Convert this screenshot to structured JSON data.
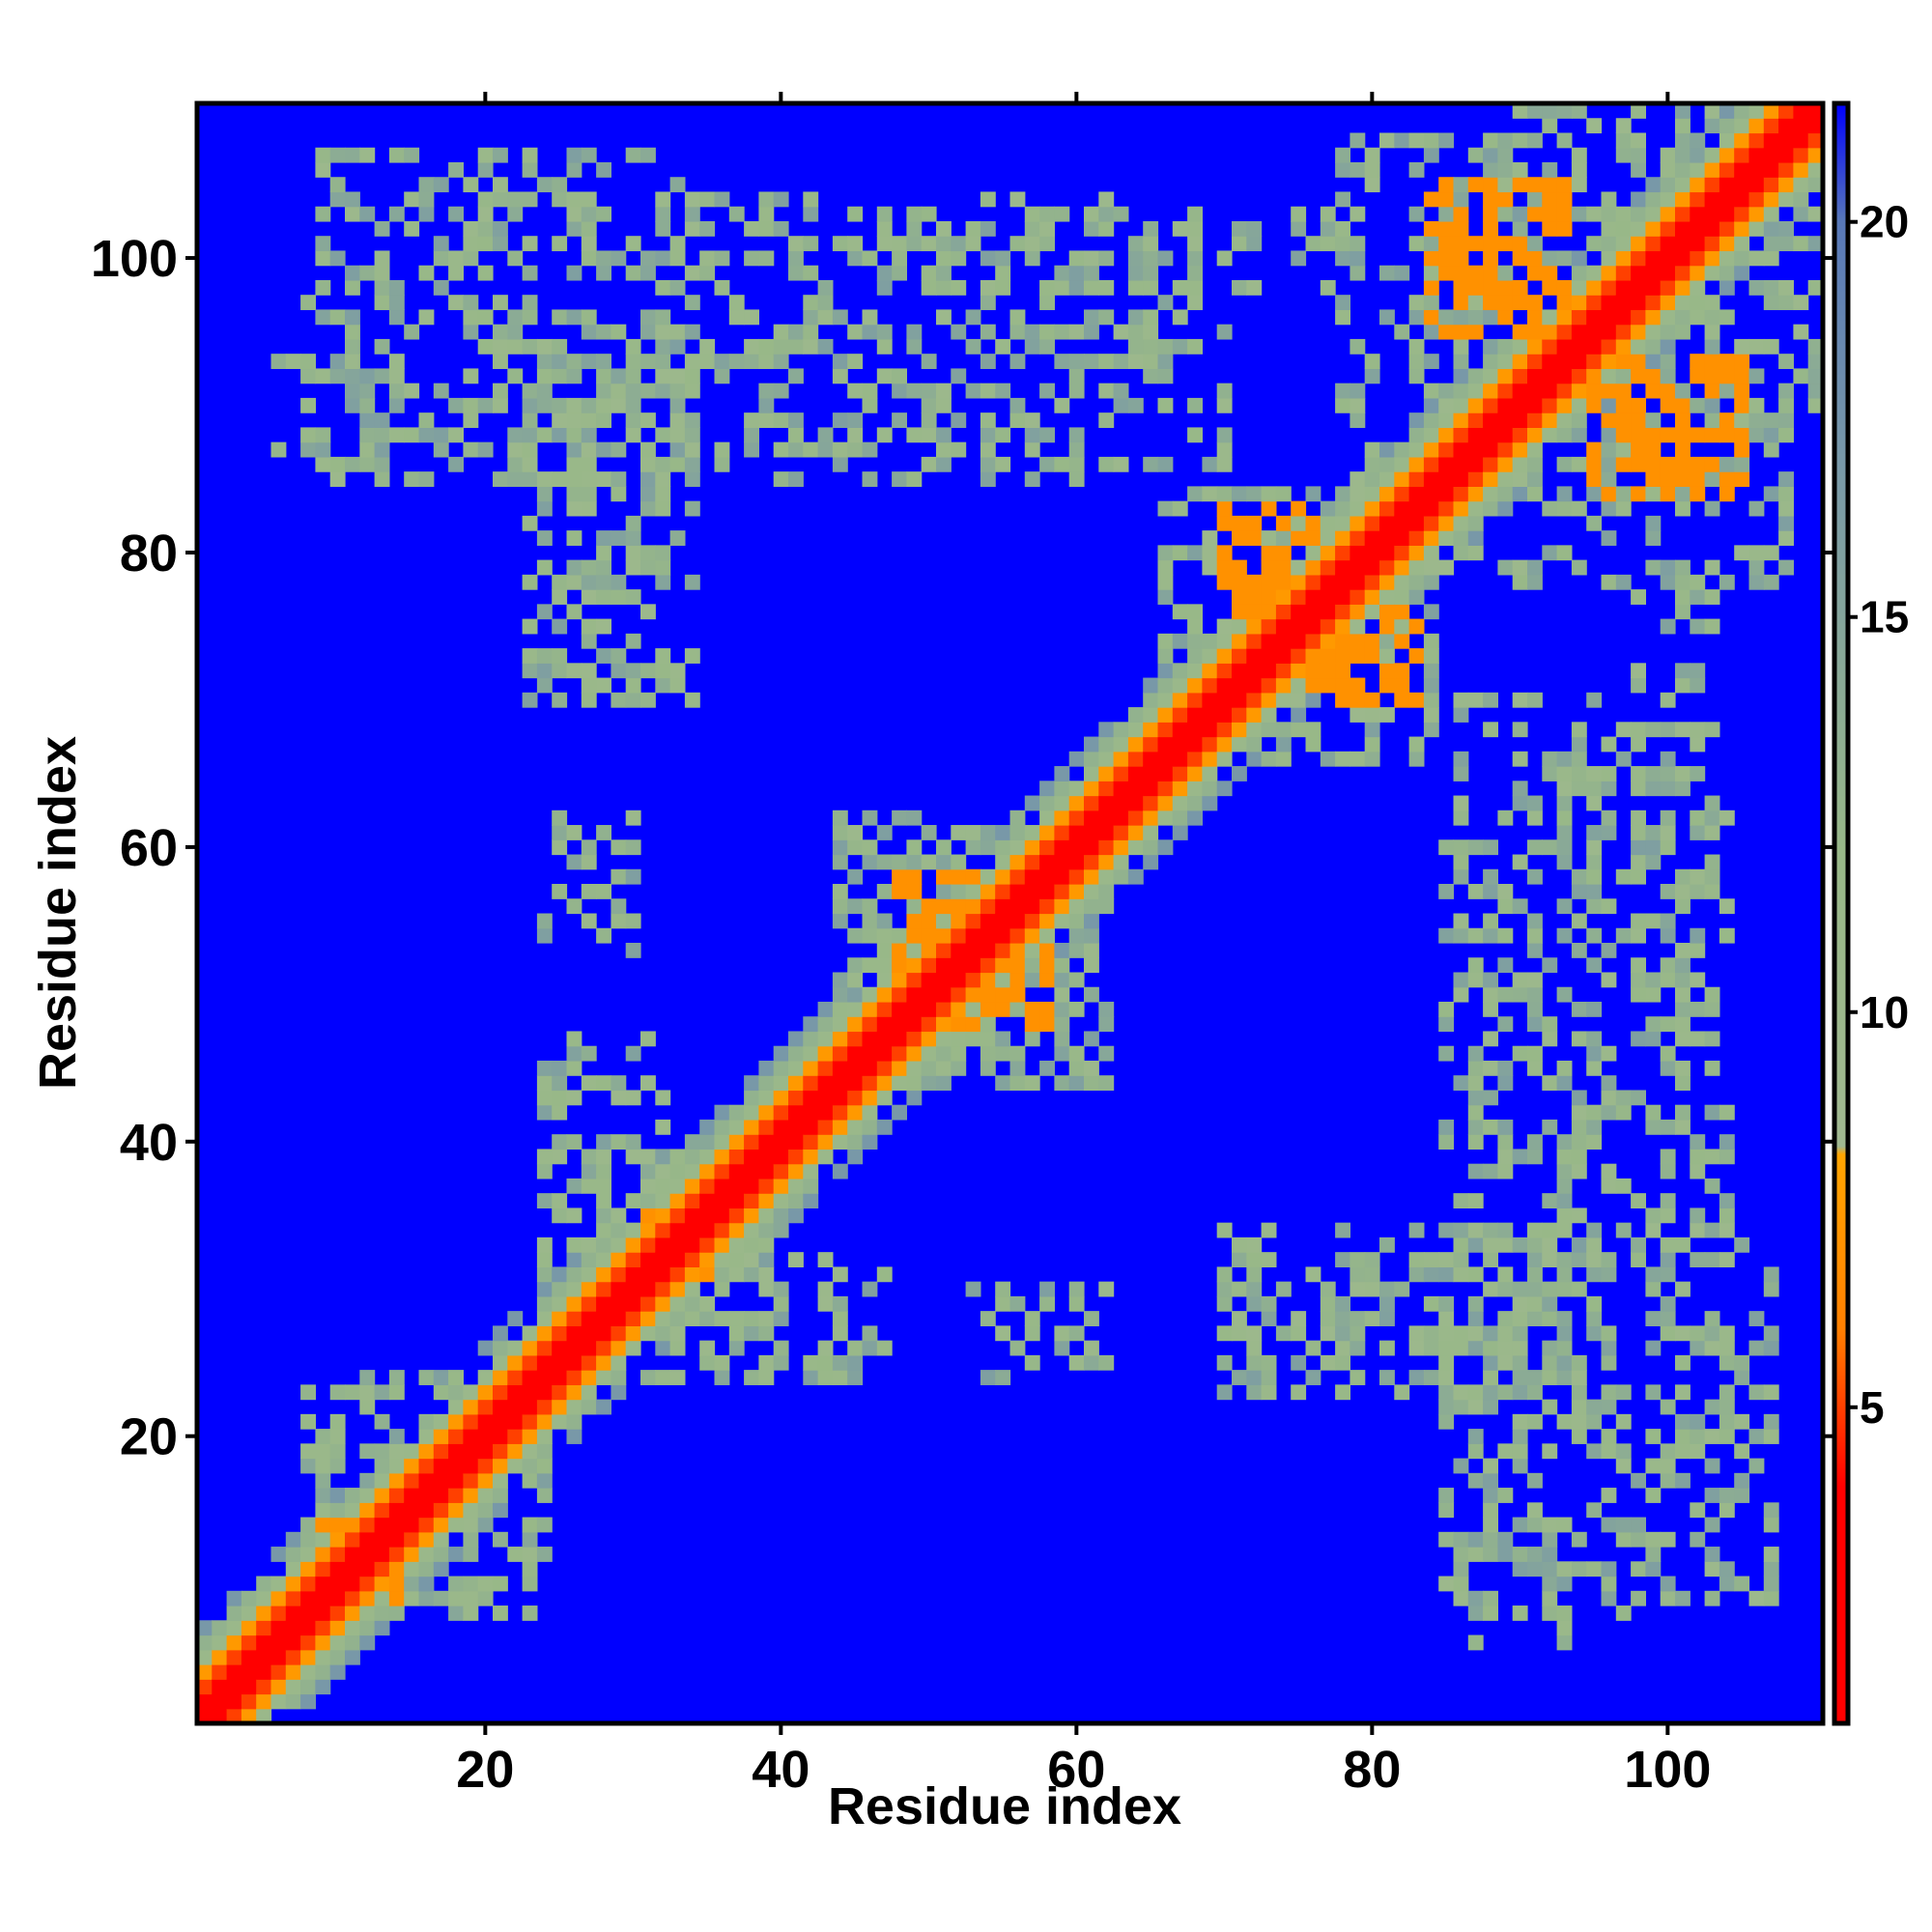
{
  "chart_data": {
    "type": "heatmap",
    "title": "",
    "xlabel": "Residue index",
    "ylabel": "Residue index",
    "xlim": [
      1,
      110
    ],
    "ylim": [
      1,
      110
    ],
    "x_ticks": [
      20,
      40,
      60,
      80,
      100
    ],
    "y_ticks": [
      20,
      40,
      60,
      80,
      100
    ],
    "x_tick_labels": [
      "20",
      "40",
      "60",
      "80",
      "100"
    ],
    "y_tick_labels": [
      "20",
      "40",
      "60",
      "80",
      "100"
    ],
    "grid": false,
    "colorbar": {
      "placement": "right",
      "range": [
        1,
        21.5
      ],
      "ticks": [
        5,
        10,
        15,
        20
      ],
      "tick_labels": [
        "5",
        "10",
        "15",
        "20"
      ],
      "colors": [
        {
          "value": 1,
          "color": "#ff0000"
        },
        {
          "value": 4,
          "color": "#ff0000"
        },
        {
          "value": 6,
          "color": "#ff8000"
        },
        {
          "value": 8.2,
          "color": "#ffa500"
        },
        {
          "value": 8.3,
          "color": "#a0b890"
        },
        {
          "value": 12,
          "color": "#98b888"
        },
        {
          "value": 17,
          "color": "#7898a8"
        },
        {
          "value": 20,
          "color": "#5878b8"
        },
        {
          "value": 21.5,
          "color": "#0000ff"
        }
      ]
    },
    "background_value": 21.5,
    "diagonal_band": [
      {
        "offset": 0,
        "value": 1
      },
      {
        "offset": 1,
        "value": 2.5
      },
      {
        "offset": 2,
        "value": 5
      },
      {
        "offset": 3,
        "value": 7.5
      },
      {
        "offset": 4,
        "value": 11
      },
      {
        "offset": 5,
        "value": 13
      },
      {
        "offset": 6,
        "value": 17
      }
    ],
    "contact_regions": [
      {
        "residues_a": [
          84,
          93
        ],
        "residues_b": [
          95,
          105
        ],
        "value": 7
      },
      {
        "residues_a": [
          70,
          76
        ],
        "residues_b": [
          76,
          83
        ],
        "value": 7
      },
      {
        "residues_a": [
          48,
          55
        ],
        "residues_b": [
          52,
          58
        ],
        "value": 7
      },
      {
        "residues_a": [
          30,
          32
        ],
        "residues_b": [
          34,
          36
        ],
        "value": 7
      },
      {
        "residues_a": [
          9,
          11
        ],
        "residues_b": [
          12,
          14
        ],
        "value": 7
      },
      {
        "residues_a": [
          84,
          108
        ],
        "residues_b": [
          78,
          110
        ],
        "value": 12
      },
      {
        "residues_a": [
          66,
          84
        ],
        "residues_b": [
          66,
          84
        ],
        "value": 12
      },
      {
        "residues_a": [
          44,
          62
        ],
        "residues_b": [
          44,
          62
        ],
        "value": 12
      },
      {
        "residues_a": [
          24,
          40
        ],
        "residues_b": [
          24,
          40
        ],
        "value": 12
      },
      {
        "residues_a": [
          8,
          24
        ],
        "residues_b": [
          8,
          24
        ],
        "value": 12
      },
      {
        "residues_a": [
          8,
          70
        ],
        "residues_b": [
          86,
          104
        ],
        "value": 12
      },
      {
        "residues_a": [
          23,
          33
        ],
        "residues_b": [
          70,
          90
        ],
        "value": 12
      },
      {
        "residues_a": [
          24,
          30
        ],
        "residues_b": [
          55,
          63
        ],
        "value": 12
      },
      {
        "residues_a": [
          24,
          33
        ],
        "residues_b": [
          37,
          47
        ],
        "value": 12
      },
      {
        "residues_a": [
          53,
          62
        ],
        "residues_b": [
          24,
          30
        ],
        "value": 12
      },
      {
        "residues_a": [
          70,
          95
        ],
        "residues_b": [
          25,
          34
        ],
        "value": 12
      },
      {
        "residues_a": [
          85,
          94
        ],
        "residues_b": [
          6,
          34
        ],
        "value": 12
      },
      {
        "residues_a": [
          96,
          107
        ],
        "residues_b": [
          9,
          34
        ],
        "value": 12
      },
      {
        "residues_a": [
          85,
          95
        ],
        "residues_b": [
          39,
          66
        ],
        "value": 12
      },
      {
        "residues_a": [
          98,
          103
        ],
        "residues_b": [
          46,
          77
        ],
        "value": 12
      },
      {
        "residues_a": [
          55,
          60
        ],
        "residues_b": [
          96,
          98
        ],
        "value": 12
      }
    ]
  }
}
